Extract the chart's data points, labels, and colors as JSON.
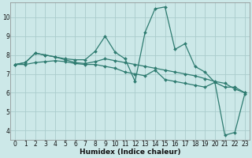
{
  "xlabel": "Humidex (Indice chaleur)",
  "bg_color": "#cce8e8",
  "line_color": "#2e7b70",
  "grid_color": "#aacccc",
  "xlim": [
    -0.5,
    23.5
  ],
  "ylim": [
    3.5,
    10.8
  ],
  "yticks": [
    4,
    5,
    6,
    7,
    8,
    9,
    10
  ],
  "xticks": [
    0,
    1,
    2,
    3,
    4,
    5,
    6,
    7,
    8,
    9,
    10,
    11,
    12,
    13,
    14,
    15,
    16,
    17,
    18,
    19,
    20,
    21,
    22,
    23
  ],
  "series1_x": [
    0,
    1,
    2,
    3,
    4,
    5,
    6,
    7,
    8,
    9,
    10,
    11,
    12,
    13,
    14,
    15,
    16,
    17,
    18,
    19,
    20,
    21,
    22,
    23
  ],
  "series1_y": [
    7.5,
    7.6,
    8.1,
    8.0,
    7.9,
    7.8,
    7.75,
    7.75,
    8.2,
    9.0,
    8.15,
    7.8,
    6.6,
    9.2,
    10.45,
    10.55,
    8.3,
    8.6,
    7.4,
    7.1,
    6.55,
    6.3,
    6.3,
    6.0
  ],
  "series2_x": [
    0,
    1,
    2,
    3,
    4,
    5,
    6,
    7,
    8,
    9,
    10,
    11,
    12,
    13,
    14,
    15,
    16,
    17,
    18,
    19,
    20,
    21,
    22,
    23
  ],
  "series2_y": [
    7.5,
    7.6,
    8.1,
    8.0,
    7.9,
    7.75,
    7.6,
    7.55,
    7.65,
    7.8,
    7.7,
    7.6,
    7.5,
    7.4,
    7.3,
    7.2,
    7.1,
    7.0,
    6.9,
    6.75,
    6.6,
    6.5,
    6.2,
    6.0
  ],
  "series3_x": [
    0,
    1,
    2,
    3,
    4,
    5,
    6,
    7,
    8,
    9,
    10,
    11,
    12,
    13,
    14,
    15,
    16,
    17,
    18,
    19,
    20,
    21,
    22,
    23
  ],
  "series3_y": [
    7.5,
    7.5,
    7.6,
    7.65,
    7.7,
    7.65,
    7.55,
    7.5,
    7.5,
    7.4,
    7.3,
    7.1,
    7.0,
    6.9,
    7.2,
    6.7,
    6.6,
    6.5,
    6.4,
    6.3,
    6.55,
    3.75,
    3.9,
    5.95
  ]
}
